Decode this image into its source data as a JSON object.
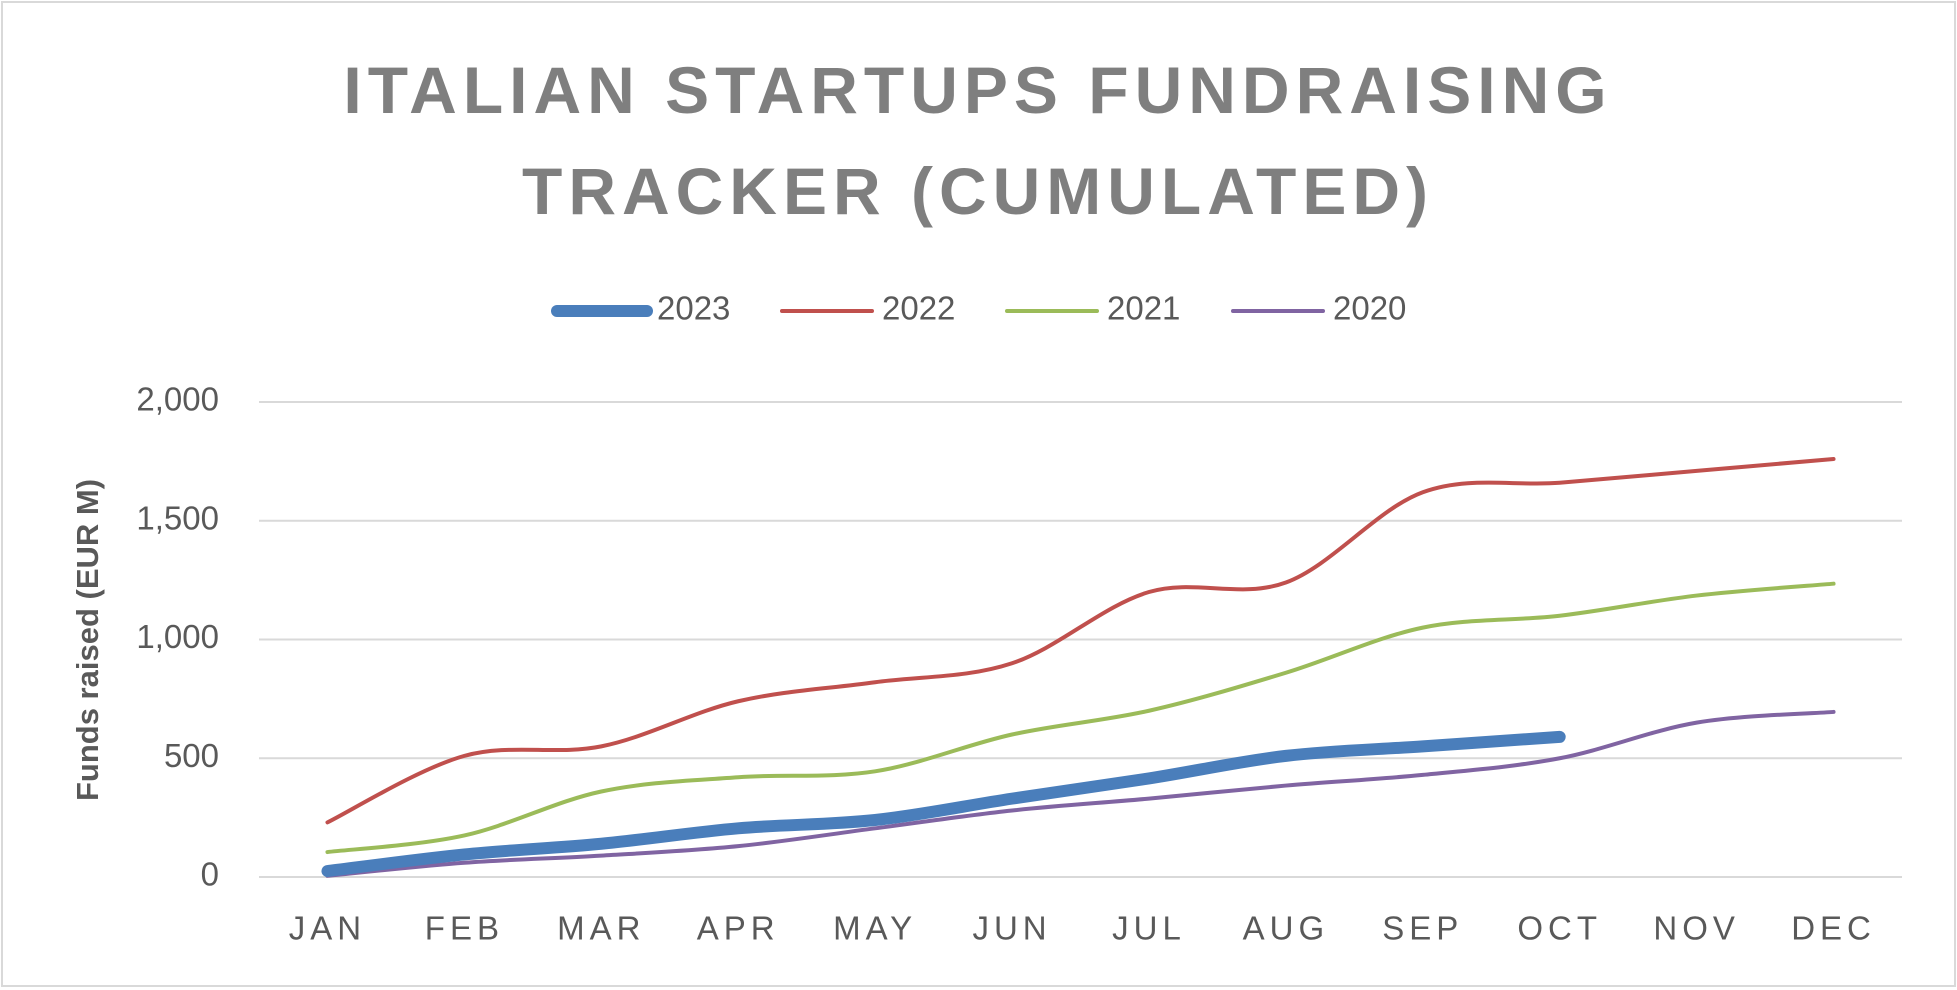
{
  "chart_data": {
    "type": "line",
    "title": "ITALIAN STARTUPS FUNDRAISING TRACKER (CUMULATED)",
    "y_label": "Funds raised (EUR M)",
    "categories": [
      "JAN",
      "FEB",
      "MAR",
      "APR",
      "MAY",
      "JUN",
      "JUL",
      "AUG",
      "SEP",
      "OCT",
      "NOV",
      "DEC"
    ],
    "series": [
      {
        "name": "2023",
        "color": "#4a7ebb",
        "values": [
          25,
          95,
          140,
          205,
          240,
          330,
          415,
          510,
          550,
          590,
          null,
          null
        ]
      },
      {
        "name": "2022",
        "color": "#c0504d",
        "values": [
          230,
          510,
          550,
          740,
          820,
          900,
          1200,
          1240,
          1620,
          1660,
          1710,
          1760
        ]
      },
      {
        "name": "2021",
        "color": "#9bbb59",
        "values": [
          105,
          175,
          360,
          420,
          445,
          600,
          700,
          860,
          1050,
          1100,
          1185,
          1235
        ]
      },
      {
        "name": "2020",
        "color": "#8064a2",
        "values": [
          5,
          60,
          90,
          130,
          205,
          280,
          330,
          385,
          430,
          500,
          650,
          695
        ]
      }
    ],
    "ylim": [
      0,
      2000
    ],
    "yticks": [
      0,
      500,
      {
        "value": 1000,
        "label": "1,000"
      },
      {
        "value": 1500,
        "label": "1,500"
      },
      {
        "value": 2000,
        "label": "2,000"
      }
    ],
    "grid": true,
    "legend": "top",
    "smooth": true
  }
}
